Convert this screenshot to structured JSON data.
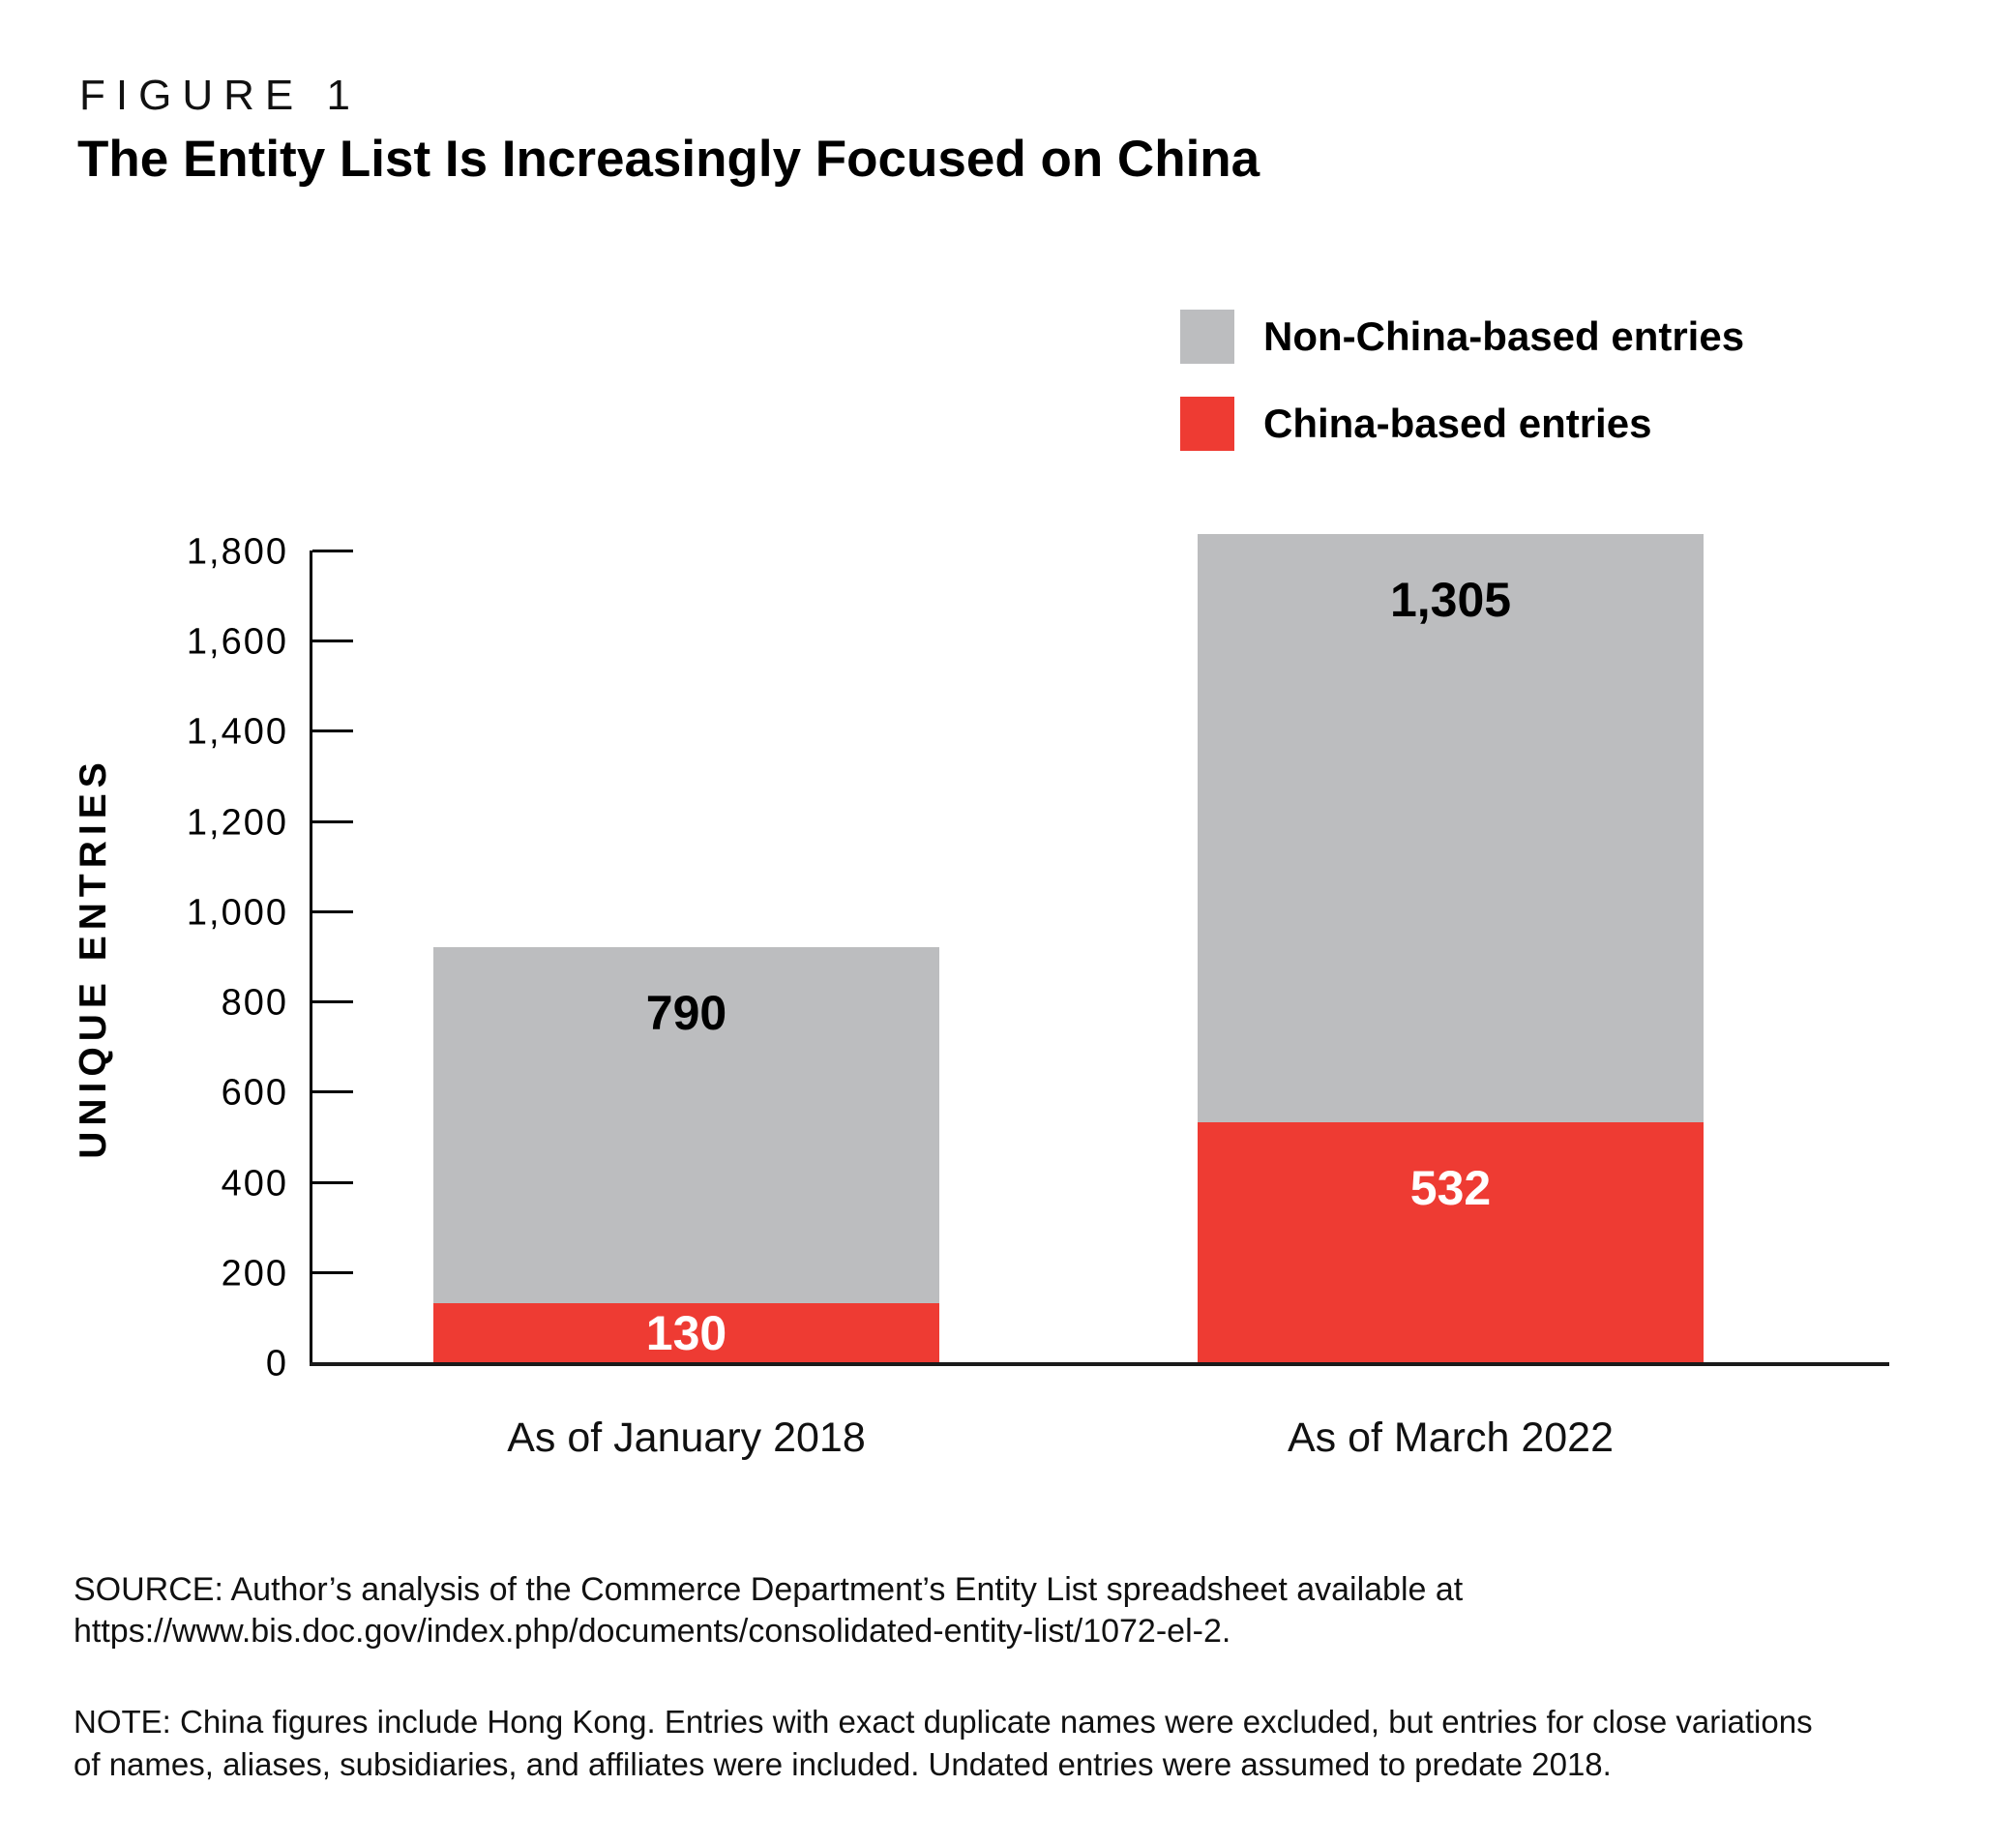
{
  "figure": {
    "label": "FIGURE 1",
    "title": "The Entity List Is Increasingly Focused on China"
  },
  "chart_data": {
    "type": "bar",
    "stacked": true,
    "title": "The Entity List Is Increasingly Focused on China",
    "xlabel": "",
    "ylabel": "UNIQUE ENTRIES",
    "categories": [
      "As of January 2018",
      "As of March 2022"
    ],
    "series": [
      {
        "name": "China-based entries",
        "color": "#ee3b33",
        "label_color": "#ffffff",
        "values": [
          130,
          532
        ],
        "labels": [
          "130",
          "532"
        ]
      },
      {
        "name": "Non-China-based entries",
        "color": "#bcbdbf",
        "label_color": "#000000",
        "values": [
          790,
          1305
        ],
        "labels": [
          "790",
          "1,305"
        ]
      }
    ],
    "totals": [
      920,
      1837
    ],
    "ylim": [
      0,
      1800
    ],
    "y_ticks": [
      0,
      200,
      400,
      600,
      800,
      1000,
      1200,
      1400,
      1600,
      1800
    ],
    "y_tick_labels": [
      "0",
      "200",
      "400",
      "600",
      "800",
      "1,000",
      "1,200",
      "1,400",
      "1,600",
      "1,800"
    ],
    "legend_position": "top-right",
    "grid": false
  },
  "footer": {
    "source_line1": "SOURCE: Author’s analysis of the Commerce Department’s Entity List spreadsheet available at",
    "source_line2": "https://www.bis.doc.gov/index.php/documents/consolidated-entity-list/1072-el-2.",
    "note_line1": "NOTE: China figures include Hong Kong. Entries with exact duplicate names were excluded, but entries for close variations",
    "note_line2": "of names, aliases, subsidiaries, and affiliates were included. Undated entries were assumed to predate 2018."
  }
}
